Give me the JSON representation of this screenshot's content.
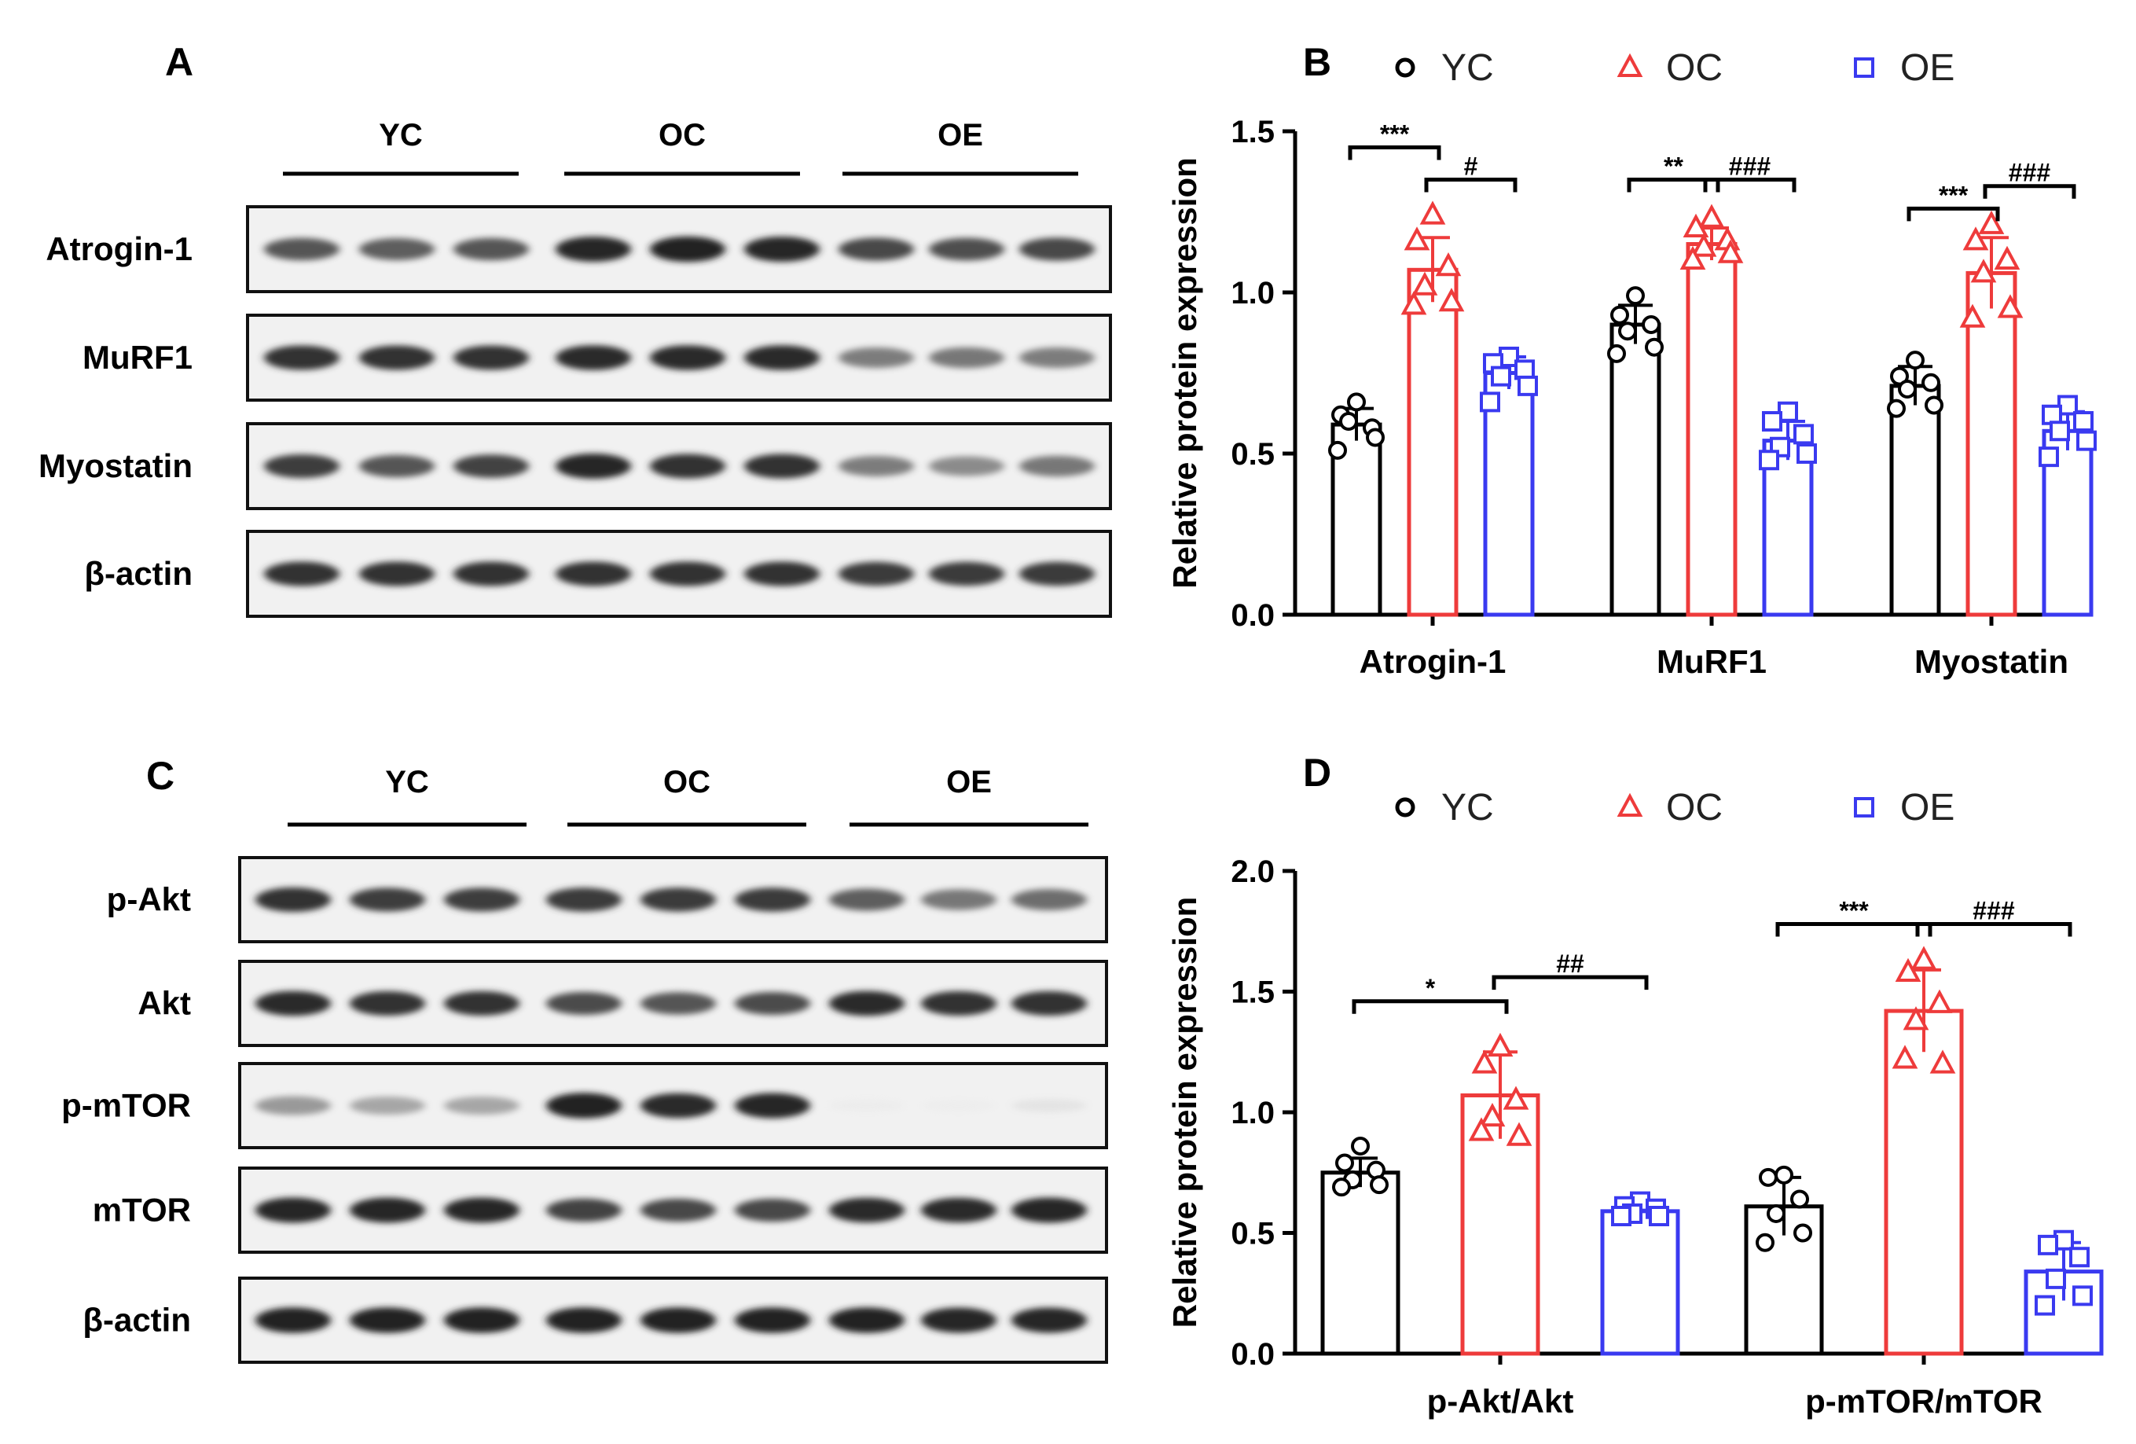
{
  "figure": {
    "panel_A": {
      "letter": "A",
      "group_labels": [
        "YC",
        "OC",
        "OE"
      ],
      "rows": [
        {
          "label": "Atrogin-1",
          "intensity": [
            0.72,
            0.7,
            0.72,
            0.9,
            0.92,
            0.9,
            0.76,
            0.74,
            0.76
          ]
        },
        {
          "label": "MuRF1",
          "intensity": [
            0.85,
            0.85,
            0.85,
            0.88,
            0.88,
            0.88,
            0.6,
            0.62,
            0.6
          ]
        },
        {
          "label": "Myostatin",
          "intensity": [
            0.8,
            0.72,
            0.78,
            0.9,
            0.85,
            0.85,
            0.6,
            0.55,
            0.62
          ]
        },
        {
          "label": "β-actin",
          "intensity": [
            0.85,
            0.85,
            0.85,
            0.85,
            0.85,
            0.85,
            0.82,
            0.82,
            0.82
          ]
        }
      ]
    },
    "panel_C": {
      "letter": "C",
      "group_labels": [
        "YC",
        "OC",
        "OE"
      ],
      "rows": [
        {
          "label": "p-Akt",
          "intensity": [
            0.85,
            0.8,
            0.8,
            0.82,
            0.82,
            0.82,
            0.7,
            0.62,
            0.65
          ]
        },
        {
          "label": "Akt",
          "intensity": [
            0.88,
            0.85,
            0.85,
            0.75,
            0.72,
            0.75,
            0.88,
            0.85,
            0.85
          ]
        },
        {
          "label": "p-mTOR",
          "intensity": [
            0.5,
            0.45,
            0.45,
            0.92,
            0.88,
            0.9,
            0.04,
            0.03,
            0.12
          ]
        },
        {
          "label": "mTOR",
          "intensity": [
            0.9,
            0.9,
            0.9,
            0.78,
            0.76,
            0.76,
            0.88,
            0.88,
            0.9
          ]
        },
        {
          "label": "β-actin",
          "intensity": [
            0.92,
            0.92,
            0.92,
            0.92,
            0.92,
            0.92,
            0.92,
            0.9,
            0.9
          ]
        }
      ]
    }
  },
  "chart_data": [
    {
      "panel": "B",
      "type": "bar",
      "ylabel": "Relative protein expression",
      "ylim": [
        0,
        1.5
      ],
      "yticks": [
        "0.0",
        "0.5",
        "1.0",
        "1.5"
      ],
      "categories": [
        "Atrogin-1",
        "MuRF1",
        "Myostatin"
      ],
      "legend": {
        "placement": "top",
        "entries": [
          "YC",
          "OC",
          "OE"
        ]
      },
      "series": [
        {
          "name": "YC",
          "color": "#000000",
          "marker": "circle",
          "values": [
            0.59,
            0.9,
            0.71
          ],
          "sd": [
            0.05,
            0.06,
            0.06
          ],
          "points": [
            [
              0.66,
              0.62,
              0.58,
              0.6,
              0.55,
              0.51
            ],
            [
              0.99,
              0.93,
              0.9,
              0.88,
              0.83,
              0.81
            ],
            [
              0.79,
              0.74,
              0.72,
              0.7,
              0.65,
              0.64
            ]
          ]
        },
        {
          "name": "OC",
          "color": "#ee3b3b",
          "marker": "triangle",
          "values": [
            1.07,
            1.15,
            1.06
          ],
          "sd": [
            0.1,
            0.05,
            0.11
          ],
          "points": [
            [
              1.24,
              1.16,
              1.08,
              1.02,
              0.97,
              0.96
            ],
            [
              1.23,
              1.2,
              1.16,
              1.14,
              1.12,
              1.1
            ],
            [
              1.21,
              1.16,
              1.1,
              1.06,
              0.95,
              0.92
            ]
          ]
        },
        {
          "name": "OE",
          "color": "#3a3af0",
          "marker": "square",
          "values": [
            0.75,
            0.54,
            0.57
          ],
          "sd": [
            0.05,
            0.06,
            0.06
          ],
          "points": [
            [
              0.8,
              0.78,
              0.76,
              0.74,
              0.71,
              0.66
            ],
            [
              0.63,
              0.6,
              0.56,
              0.52,
              0.5,
              0.48
            ],
            [
              0.65,
              0.62,
              0.6,
              0.57,
              0.54,
              0.49
            ]
          ]
        }
      ],
      "annotations": [
        {
          "text": "***",
          "category": 0,
          "from": "YC",
          "to": "OC",
          "y": 1.45
        },
        {
          "text": "#",
          "category": 0,
          "from": "OC",
          "to": "OE",
          "y": 1.35
        },
        {
          "text": "**",
          "category": 1,
          "from": "YC",
          "to": "OC",
          "y": 1.35
        },
        {
          "text": "###",
          "category": 1,
          "from": "OC",
          "to": "OE",
          "y": 1.35
        },
        {
          "text": "***",
          "category": 2,
          "from": "YC",
          "to": "OC",
          "y": 1.26
        },
        {
          "text": "###",
          "category": 2,
          "from": "OC",
          "to": "OE",
          "y": 1.33
        }
      ]
    },
    {
      "panel": "D",
      "type": "bar",
      "ylabel": "Relative protein expression",
      "ylim": [
        0,
        2.0
      ],
      "yticks": [
        "0.0",
        "0.5",
        "1.0",
        "1.5",
        "2.0"
      ],
      "categories": [
        "p-Akt/Akt",
        "p-mTOR/mTOR"
      ],
      "legend": {
        "placement": "top",
        "entries": [
          "YC",
          "OC",
          "OE"
        ]
      },
      "series": [
        {
          "name": "YC",
          "color": "#000000",
          "marker": "circle",
          "values": [
            0.75,
            0.61
          ],
          "sd": [
            0.06,
            0.12
          ],
          "points": [
            [
              0.86,
              0.79,
              0.76,
              0.72,
              0.7,
              0.69
            ],
            [
              0.74,
              0.73,
              0.64,
              0.58,
              0.5,
              0.46
            ]
          ]
        },
        {
          "name": "OC",
          "color": "#ee3b3b",
          "marker": "triangle",
          "values": [
            1.07,
            1.42
          ],
          "sd": [
            0.18,
            0.17
          ],
          "points": [
            [
              1.27,
              1.2,
              1.05,
              0.98,
              0.9,
              0.92
            ],
            [
              1.63,
              1.58,
              1.45,
              1.38,
              1.2,
              1.22
            ]
          ]
        },
        {
          "name": "OE",
          "color": "#3a3af0",
          "marker": "square",
          "values": [
            0.59,
            0.34
          ],
          "sd": [
            0.03,
            0.12
          ],
          "points": [
            [
              0.63,
              0.61,
              0.6,
              0.58,
              0.57,
              0.57
            ],
            [
              0.47,
              0.45,
              0.4,
              0.31,
              0.24,
              0.2
            ]
          ]
        }
      ],
      "annotations": [
        {
          "text": "*",
          "category": 0,
          "from": "YC",
          "to": "OC",
          "y": 1.46
        },
        {
          "text": "##",
          "category": 0,
          "from": "OC",
          "to": "OE",
          "y": 1.56
        },
        {
          "text": "***",
          "category": 1,
          "from": "YC",
          "to": "OC",
          "y": 1.78
        },
        {
          "text": "###",
          "category": 1,
          "from": "OC",
          "to": "OE",
          "y": 1.78
        }
      ]
    }
  ]
}
